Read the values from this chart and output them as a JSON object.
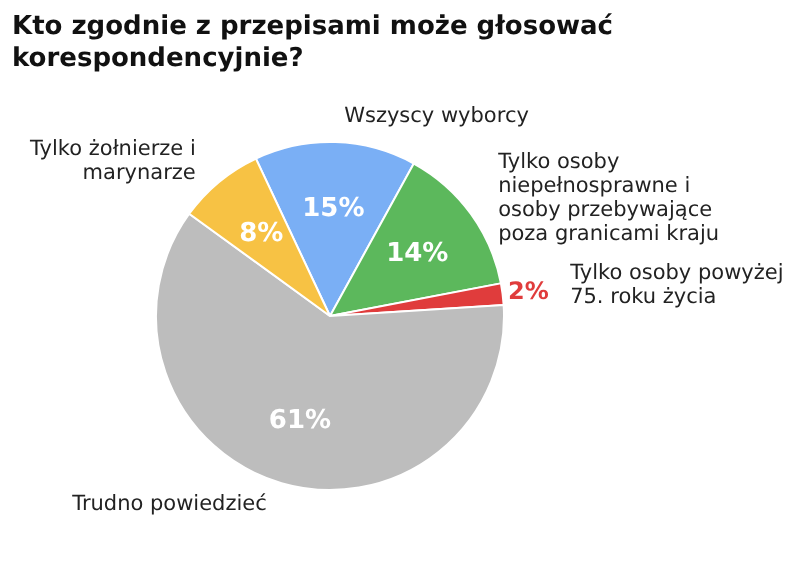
{
  "chart_data": {
    "type": "pie",
    "title": "Kto zgodnie z przepisami może głosować korespondencyjnie?",
    "categories": [
      "Wszyscy wyborcy",
      "Tylko osoby niepełnosprawne i osoby przebywające poza granicami kraju",
      "Tylko osoby powyżej 75. roku życia",
      "Trudno powiedzieć",
      "Tylko żołnierze i marynarze"
    ],
    "values": [
      15,
      14,
      2,
      61,
      8
    ],
    "colors": [
      "#7aaff5",
      "#5cb85c",
      "#e03c3c",
      "#bdbdbd",
      "#f7c244"
    ],
    "value_labels": [
      "15%",
      "14%",
      "2%",
      "61%",
      "8%"
    ],
    "legend": false
  }
}
